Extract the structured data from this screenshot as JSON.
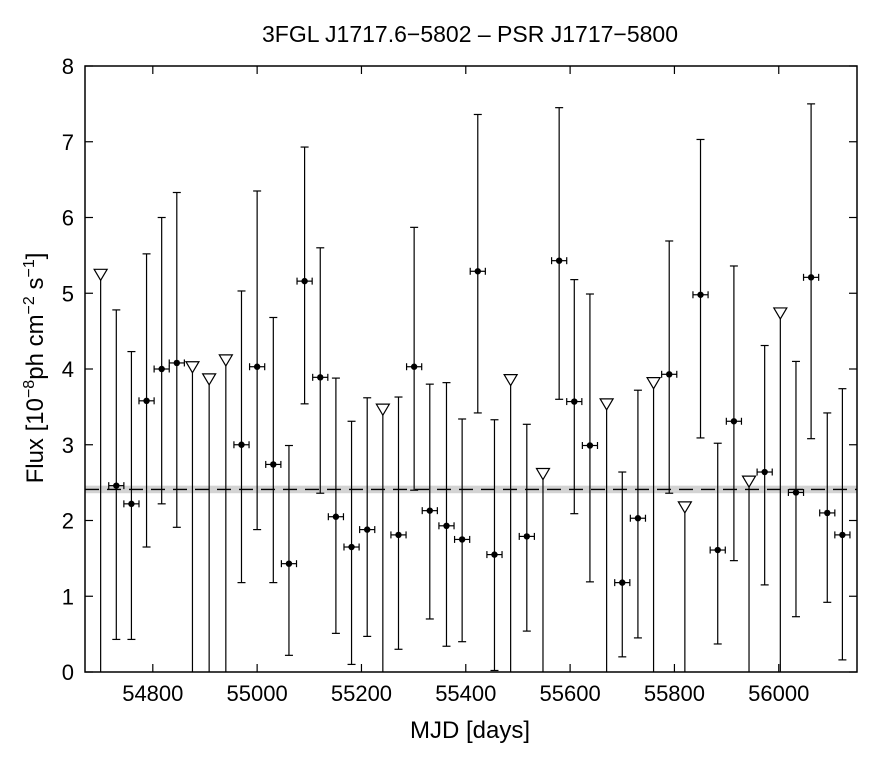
{
  "chart_data": {
    "type": "scatter",
    "title": "3FGL J1717.6−5802 – PSR J1717−5800",
    "xlabel": "MJD [days]",
    "ylabel": {
      "prefix": "Flux [10",
      "exp1": "−8",
      "mid1": "ph cm",
      "exp2": "−2",
      "mid2": " s",
      "exp3": "−1",
      "suffix": "]"
    },
    "xlim": [
      54670,
      56150
    ],
    "ylim": [
      0,
      8
    ],
    "x_ticks": [
      54800,
      55000,
      55200,
      55400,
      55600,
      55800,
      56000
    ],
    "y_ticks": [
      0,
      1,
      2,
      3,
      4,
      5,
      6,
      7,
      8
    ],
    "grid": false,
    "bin_halfwidth_days": 14.5,
    "mean_flux": 2.41,
    "mean_flux_band": [
      2.36,
      2.46
    ],
    "colors": {
      "points": "#000000",
      "band": "#d3d3d3",
      "upper_limit_fill": "#ffffff"
    },
    "detections": [
      {
        "x": 54730,
        "y": 2.46,
        "lo": 0.43,
        "hi": 4.78
      },
      {
        "x": 54759,
        "y": 2.22,
        "lo": 0.43,
        "hi": 4.23
      },
      {
        "x": 54788,
        "y": 3.58,
        "lo": 1.65,
        "hi": 5.52
      },
      {
        "x": 54817,
        "y": 4.0,
        "lo": 2.22,
        "hi": 6.0
      },
      {
        "x": 54846,
        "y": 4.08,
        "lo": 1.91,
        "hi": 6.33
      },
      {
        "x": 54970,
        "y": 3.0,
        "lo": 1.18,
        "hi": 5.03
      },
      {
        "x": 55000,
        "y": 4.03,
        "lo": 1.88,
        "hi": 6.35
      },
      {
        "x": 55031,
        "y": 2.74,
        "lo": 1.18,
        "hi": 4.68
      },
      {
        "x": 55061,
        "y": 1.43,
        "lo": 0.22,
        "hi": 2.99
      },
      {
        "x": 55091,
        "y": 5.16,
        "lo": 3.54,
        "hi": 6.93
      },
      {
        "x": 55121,
        "y": 3.89,
        "lo": 2.36,
        "hi": 5.6
      },
      {
        "x": 55151,
        "y": 2.05,
        "lo": 0.51,
        "hi": 3.88
      },
      {
        "x": 55181,
        "y": 1.65,
        "lo": 0.1,
        "hi": 3.31
      },
      {
        "x": 55211,
        "y": 1.88,
        "lo": 0.47,
        "hi": 3.62
      },
      {
        "x": 55271,
        "y": 1.81,
        "lo": 0.3,
        "hi": 3.63
      },
      {
        "x": 55301,
        "y": 4.03,
        "lo": 2.4,
        "hi": 5.87
      },
      {
        "x": 55331,
        "y": 2.13,
        "lo": 0.7,
        "hi": 3.8
      },
      {
        "x": 55363,
        "y": 1.93,
        "lo": 0.34,
        "hi": 3.82
      },
      {
        "x": 55393,
        "y": 1.75,
        "lo": 0.4,
        "hi": 3.34
      },
      {
        "x": 55423,
        "y": 5.29,
        "lo": 3.42,
        "hi": 7.36
      },
      {
        "x": 55455,
        "y": 1.55,
        "lo": 0.02,
        "hi": 3.33
      },
      {
        "x": 55517,
        "y": 1.79,
        "lo": 0.54,
        "hi": 3.27
      },
      {
        "x": 55579,
        "y": 5.43,
        "lo": 3.6,
        "hi": 7.45
      },
      {
        "x": 55608,
        "y": 3.57,
        "lo": 2.09,
        "hi": 5.18
      },
      {
        "x": 55638,
        "y": 2.99,
        "lo": 1.19,
        "hi": 4.99
      },
      {
        "x": 55700,
        "y": 1.18,
        "lo": 0.2,
        "hi": 2.64
      },
      {
        "x": 55730,
        "y": 2.03,
        "lo": 0.45,
        "hi": 3.72
      },
      {
        "x": 55790,
        "y": 3.93,
        "lo": 2.36,
        "hi": 5.69
      },
      {
        "x": 55850,
        "y": 4.98,
        "lo": 3.09,
        "hi": 7.03
      },
      {
        "x": 55883,
        "y": 1.61,
        "lo": 0.37,
        "hi": 3.02
      },
      {
        "x": 55914,
        "y": 3.31,
        "lo": 1.47,
        "hi": 5.36
      },
      {
        "x": 55973,
        "y": 2.64,
        "lo": 1.15,
        "hi": 4.31
      },
      {
        "x": 56033,
        "y": 2.37,
        "lo": 0.73,
        "hi": 4.1
      },
      {
        "x": 56062,
        "y": 5.21,
        "lo": 3.08,
        "hi": 7.5
      },
      {
        "x": 56093,
        "y": 2.1,
        "lo": 0.92,
        "hi": 3.42
      },
      {
        "x": 56122,
        "y": 1.81,
        "lo": 0.16,
        "hi": 3.74
      }
    ],
    "upper_limits": [
      {
        "x": 54700,
        "y": 5.25
      },
      {
        "x": 54876,
        "y": 4.03
      },
      {
        "x": 54908,
        "y": 3.87
      },
      {
        "x": 54940,
        "y": 4.12
      },
      {
        "x": 55241,
        "y": 3.47
      },
      {
        "x": 55486,
        "y": 3.86
      },
      {
        "x": 55548,
        "y": 2.62
      },
      {
        "x": 55670,
        "y": 3.54
      },
      {
        "x": 55760,
        "y": 3.82
      },
      {
        "x": 55820,
        "y": 2.18
      },
      {
        "x": 55943,
        "y": 2.52
      },
      {
        "x": 56003,
        "y": 4.74
      }
    ]
  }
}
